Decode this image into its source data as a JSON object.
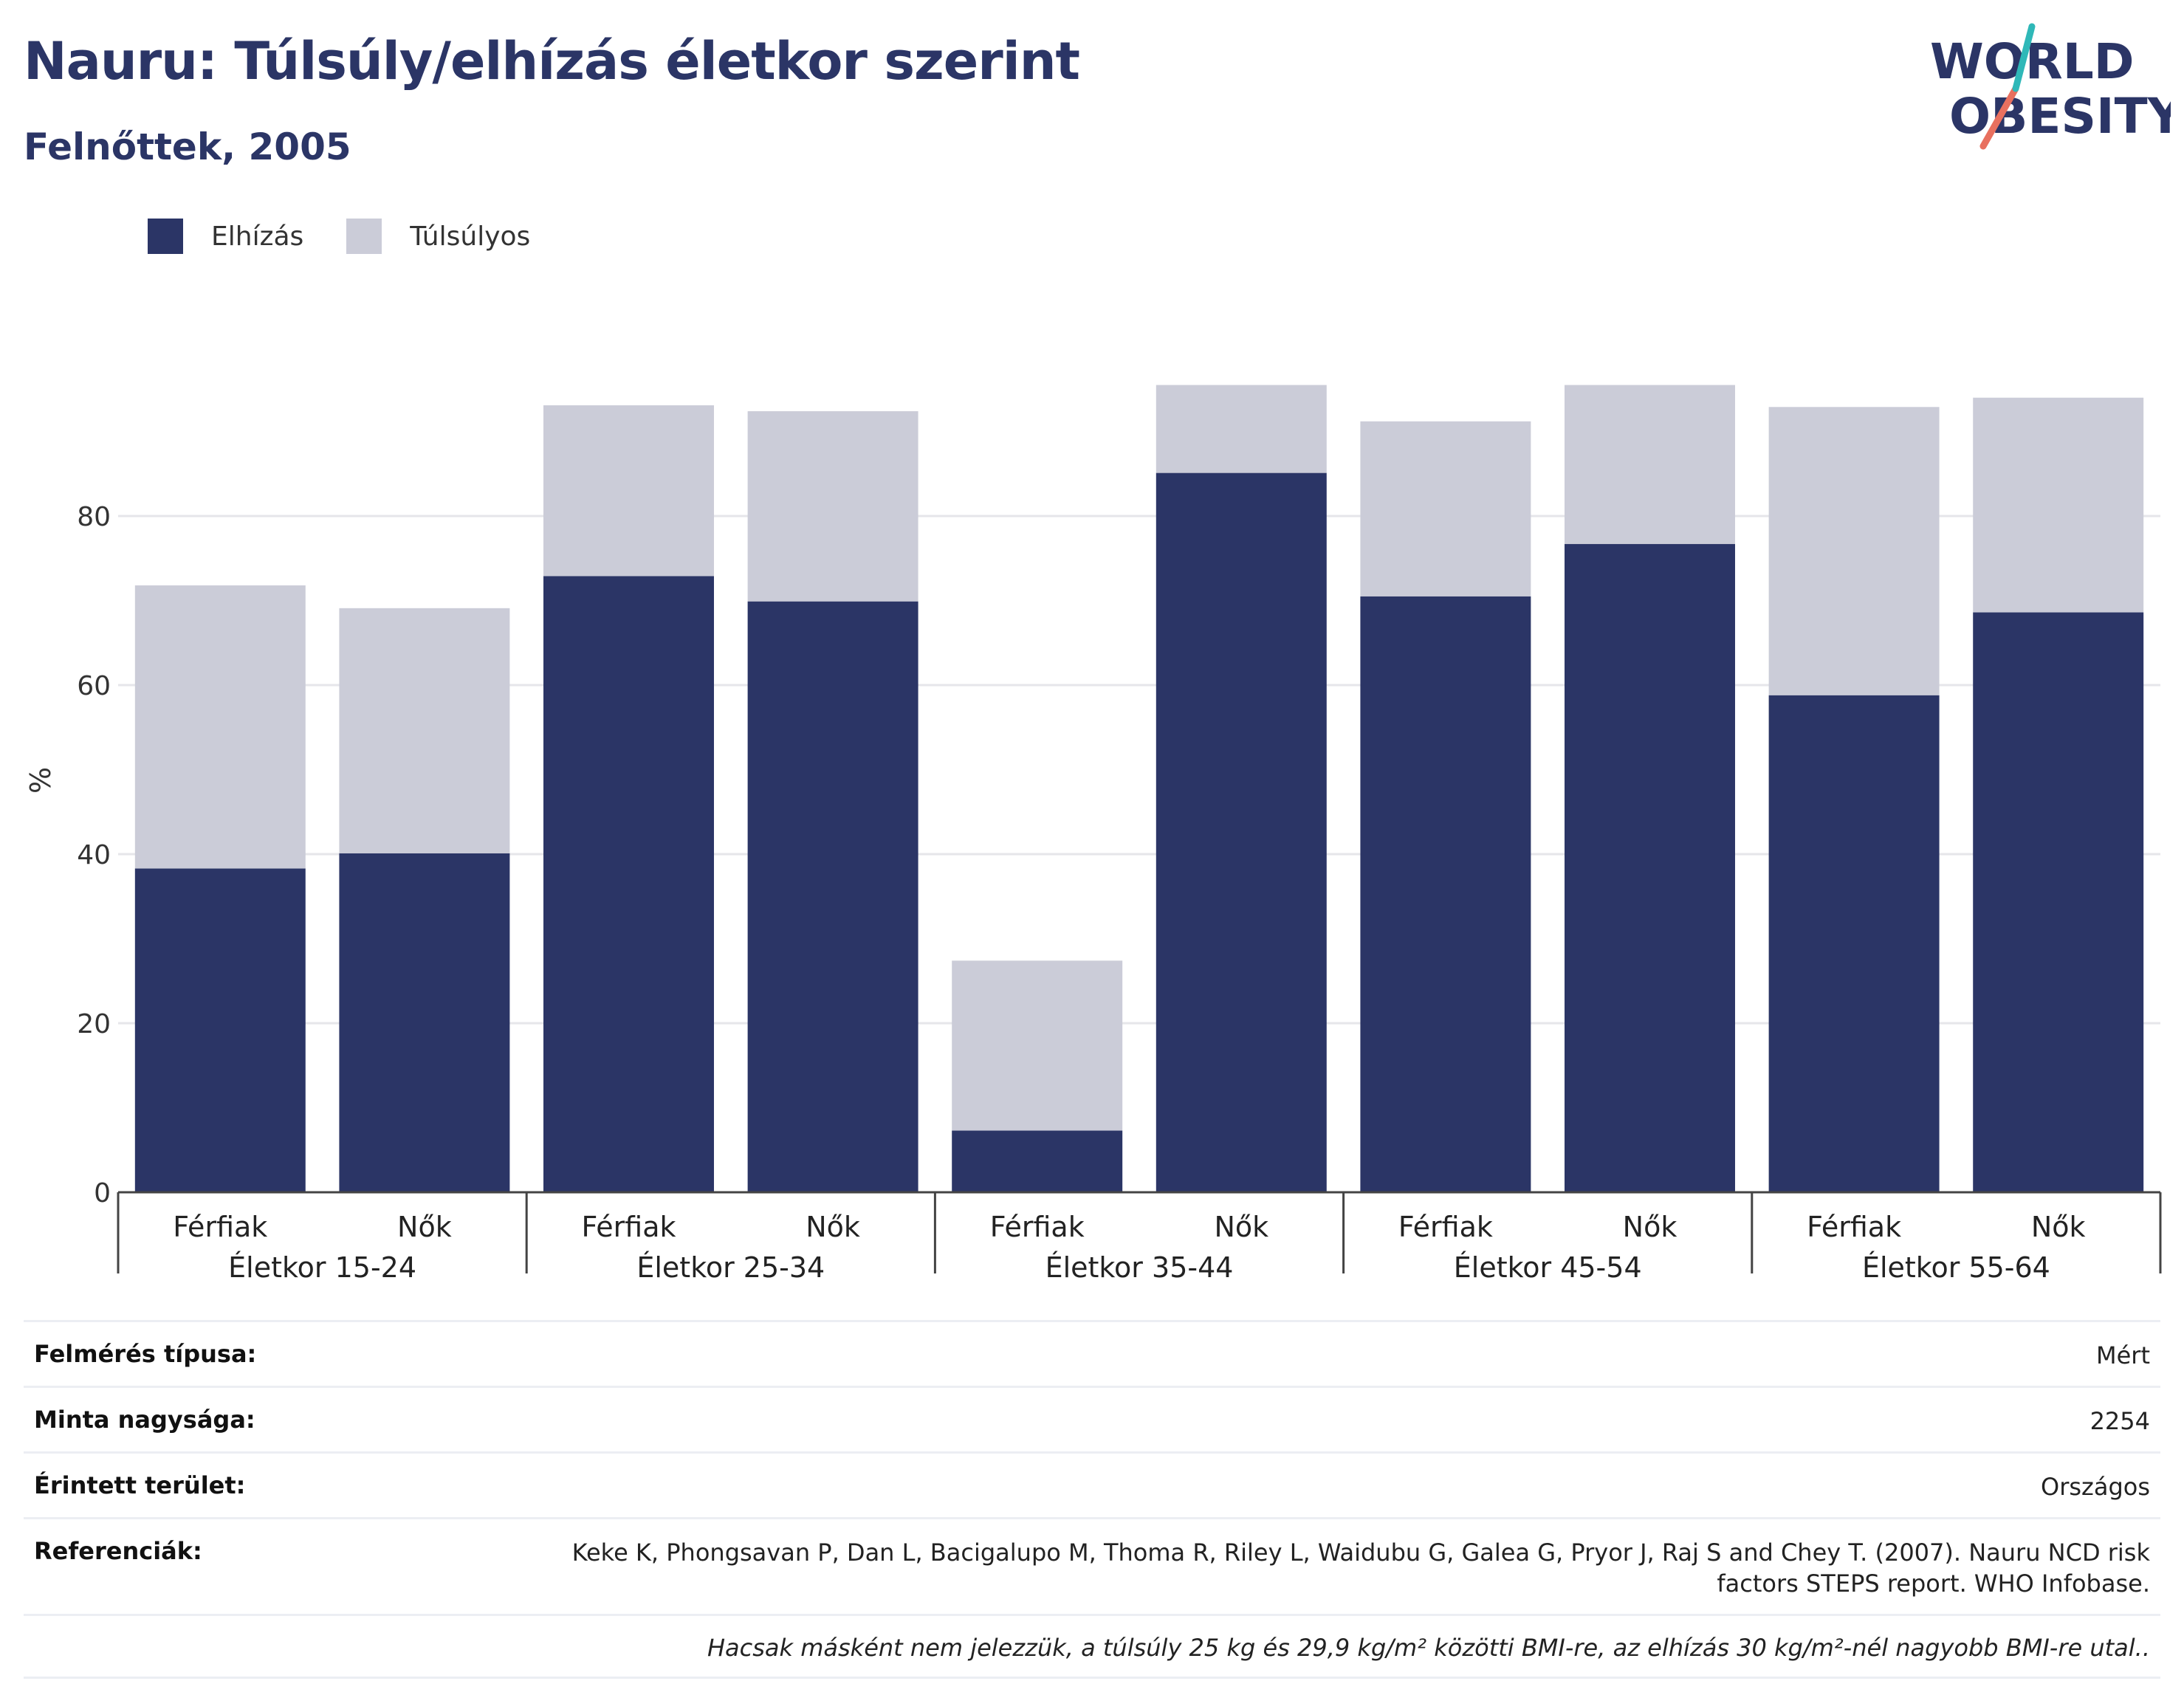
{
  "header": {
    "title": "Nauru: Túlsúly/elhízás életkor szerint",
    "subtitle": "Felnőttek, 2005"
  },
  "logo": {
    "line1": "WORLD",
    "line2": "OBESITY"
  },
  "legend": [
    {
      "label": "Elhízás",
      "color": "#2b3566"
    },
    {
      "label": "Túlsúlyos",
      "color": "#cbccd8"
    }
  ],
  "chart_data": {
    "type": "bar",
    "stacked": true,
    "ylabel": "%",
    "ylim": [
      0,
      100
    ],
    "yticks": [
      0,
      20,
      40,
      60,
      80
    ],
    "grid": true,
    "legend_position": "top-left",
    "groups": [
      "Életkor 15-24",
      "Életkor 25-34",
      "Életkor 35-44",
      "Életkor 45-54",
      "Életkor 55-64"
    ],
    "subcategories": [
      "Férfiak",
      "Nők"
    ],
    "series": [
      {
        "name": "Elhízás",
        "color": "#2b3566",
        "values": [
          38.3,
          40.1,
          72.9,
          69.9,
          7.3,
          85.1,
          70.5,
          76.7,
          58.8,
          68.6
        ]
      },
      {
        "name": "Túlsúlyos",
        "color": "#cbccd8",
        "values": [
          33.5,
          29.0,
          20.2,
          22.5,
          20.1,
          10.4,
          20.7,
          18.8,
          34.1,
          25.4
        ]
      }
    ]
  },
  "meta": {
    "rows": [
      {
        "label": "Felmérés típusa:",
        "value": "Mért"
      },
      {
        "label": "Minta nagysága:",
        "value": "2254"
      },
      {
        "label": "Érintett terület:",
        "value": "Országos"
      },
      {
        "label": "Referenciák:",
        "value": "Keke K, Phongsavan P, Dan L, Bacigalupo M, Thoma R, Riley L, Waidubu G, Galea G, Pryor J, Raj S and Chey T. (2007). Nauru NCD risk factors STEPS report. WHO Infobase."
      }
    ],
    "note": "Hacsak másként nem jelezzük, a túlsúly 25 kg és 29,9 kg/m² közötti BMI-re, az elhízás 30 kg/m²-nél nagyobb BMI-re utal.."
  }
}
